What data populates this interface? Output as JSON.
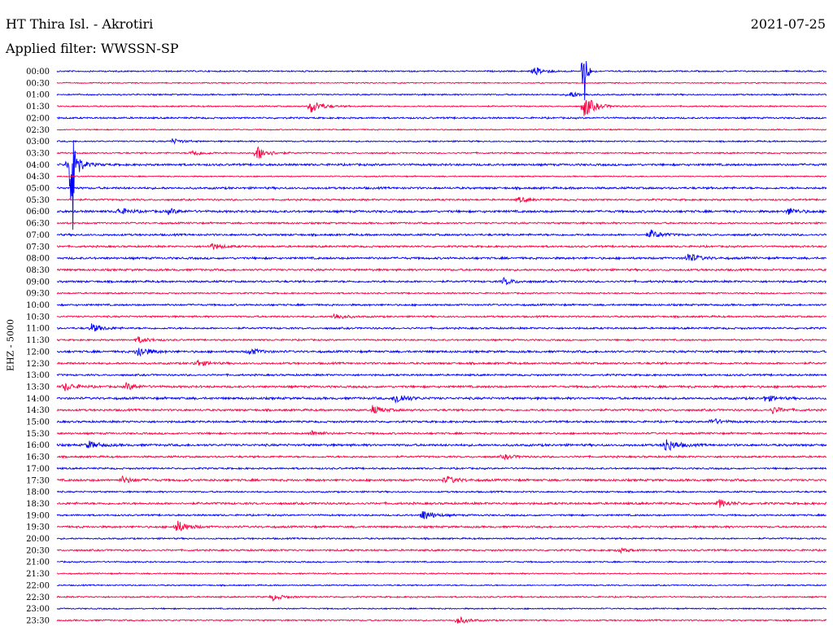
{
  "header": {
    "station": "HT Thira Isl. - Akrotiri",
    "date": "2021-07-25",
    "filter": "Applied filter: WWSSN-SP",
    "channel": "EHZ - 5000"
  },
  "chart_data": {
    "type": "line",
    "title": "HT Thira Isl. - Akrotiri",
    "subtitle": "Applied filter: WWSSN-SP",
    "ylabel": "EHZ - 5000",
    "xlabel": "",
    "colors": [
      "#0000ff",
      "#ff0040"
    ],
    "grid": false,
    "legend": "none",
    "tick_labels": [
      "00:00",
      "00:30",
      "01:00",
      "01:30",
      "02:00",
      "02:30",
      "03:00",
      "03:30",
      "04:00",
      "04:30",
      "05:00",
      "05:30",
      "06:00",
      "06:30",
      "07:00",
      "07:30",
      "08:00",
      "08:30",
      "09:00",
      "09:30",
      "10:00",
      "10:30",
      "11:00",
      "11:30",
      "12:00",
      "12:30",
      "13:00",
      "13:30",
      "14:00",
      "14:30",
      "15:00",
      "15:30",
      "16:00",
      "16:30",
      "17:00",
      "17:30",
      "18:00",
      "18:30",
      "19:00",
      "19:30",
      "20:00",
      "20:30",
      "21:00",
      "21:30",
      "22:00",
      "22:30",
      "23:00",
      "23:30"
    ],
    "noise": [
      1.0,
      0.8,
      1.0,
      0.9,
      1.2,
      0.8,
      1.0,
      1.0,
      1.5,
      0.8,
      1.5,
      1.2,
      1.6,
      1.2,
      1.4,
      1.3,
      1.5,
      1.4,
      1.4,
      1.0,
      1.3,
      1.2,
      1.3,
      1.1,
      1.5,
      1.4,
      1.3,
      1.5,
      1.6,
      1.4,
      1.4,
      1.3,
      1.6,
      1.3,
      1.2,
      1.5,
      1.1,
      1.5,
      1.2,
      1.4,
      1.1,
      1.2,
      1.0,
      0.9,
      0.9,
      1.0,
      0.9,
      1.0
    ],
    "events": [
      {
        "row": 0,
        "x": 0.62,
        "amp": 5
      },
      {
        "row": 0,
        "x": 0.685,
        "amp": 50
      },
      {
        "row": 3,
        "x": 0.33,
        "amp": 9
      },
      {
        "row": 3,
        "x": 0.685,
        "amp": 14
      },
      {
        "row": 2,
        "x": 0.665,
        "amp": 4
      },
      {
        "row": 6,
        "x": 0.15,
        "amp": 3
      },
      {
        "row": 7,
        "x": 0.175,
        "amp": 4
      },
      {
        "row": 7,
        "x": 0.26,
        "amp": 9
      },
      {
        "row": 8,
        "x": 0.015,
        "amp": 14
      },
      {
        "row": 8,
        "x": 0.02,
        "amp": 120
      },
      {
        "row": 11,
        "x": 0.6,
        "amp": 3
      },
      {
        "row": 12,
        "x": 0.08,
        "amp": 4
      },
      {
        "row": 12,
        "x": 0.145,
        "amp": 3
      },
      {
        "row": 12,
        "x": 0.95,
        "amp": 4
      },
      {
        "row": 14,
        "x": 0.77,
        "amp": 6
      },
      {
        "row": 15,
        "x": 0.2,
        "amp": 4
      },
      {
        "row": 16,
        "x": 0.82,
        "amp": 6
      },
      {
        "row": 18,
        "x": 0.58,
        "amp": 4
      },
      {
        "row": 21,
        "x": 0.36,
        "amp": 4
      },
      {
        "row": 22,
        "x": 0.045,
        "amp": 5
      },
      {
        "row": 23,
        "x": 0.105,
        "amp": 4
      },
      {
        "row": 24,
        "x": 0.105,
        "amp": 7
      },
      {
        "row": 24,
        "x": 0.25,
        "amp": 4
      },
      {
        "row": 25,
        "x": 0.18,
        "amp": 4
      },
      {
        "row": 27,
        "x": 0.01,
        "amp": 5
      },
      {
        "row": 27,
        "x": 0.09,
        "amp": 4
      },
      {
        "row": 28,
        "x": 0.44,
        "amp": 7
      },
      {
        "row": 28,
        "x": 0.92,
        "amp": 4
      },
      {
        "row": 29,
        "x": 0.41,
        "amp": 5
      },
      {
        "row": 29,
        "x": 0.93,
        "amp": 4
      },
      {
        "row": 30,
        "x": 0.85,
        "amp": 4
      },
      {
        "row": 31,
        "x": 0.33,
        "amp": 3
      },
      {
        "row": 32,
        "x": 0.04,
        "amp": 5
      },
      {
        "row": 32,
        "x": 0.79,
        "amp": 9
      },
      {
        "row": 33,
        "x": 0.58,
        "amp": 3
      },
      {
        "row": 35,
        "x": 0.085,
        "amp": 4
      },
      {
        "row": 35,
        "x": 0.505,
        "amp": 5
      },
      {
        "row": 37,
        "x": 0.86,
        "amp": 5
      },
      {
        "row": 38,
        "x": 0.475,
        "amp": 7
      },
      {
        "row": 39,
        "x": 0.155,
        "amp": 8
      },
      {
        "row": 41,
        "x": 0.73,
        "amp": 3
      },
      {
        "row": 45,
        "x": 0.28,
        "amp": 4
      },
      {
        "row": 47,
        "x": 0.52,
        "amp": 5
      }
    ]
  }
}
